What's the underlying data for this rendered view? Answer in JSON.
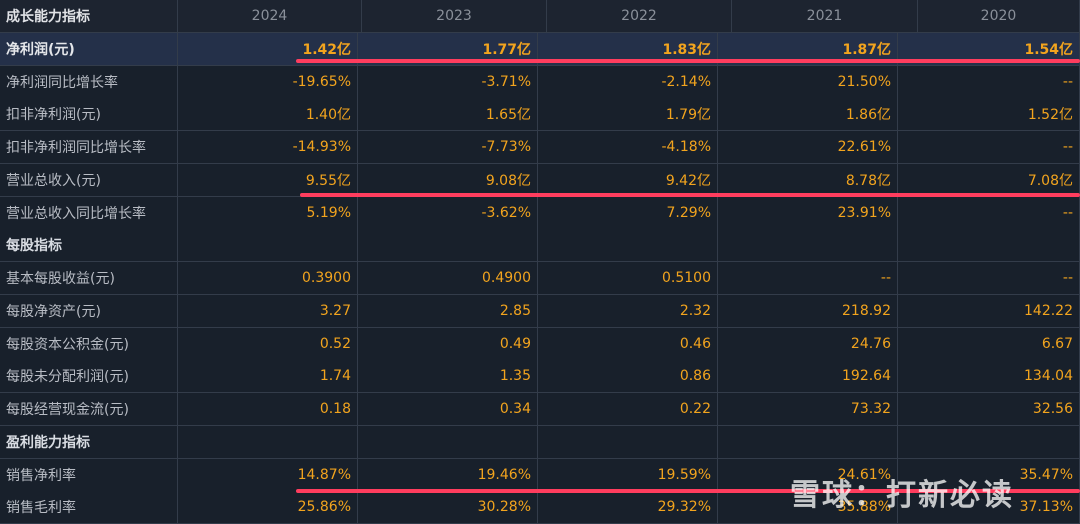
{
  "header": {
    "title": "成长能力指标",
    "years": [
      "2024",
      "2023",
      "2022",
      "2021",
      "2020"
    ]
  },
  "table": {
    "rows": [
      [
        "净利润(元)",
        "1.42亿",
        "1.77亿",
        "1.83亿",
        "1.87亿",
        "1.54亿"
      ],
      [
        "净利润同比增长率",
        "-19.65%",
        "-3.71%",
        "-2.14%",
        "21.50%",
        "--"
      ],
      [
        "扣非净利润(元)",
        "1.40亿",
        "1.65亿",
        "1.79亿",
        "1.86亿",
        "1.52亿"
      ],
      [
        "扣非净利润同比增长率",
        "-14.93%",
        "-7.73%",
        "-4.18%",
        "22.61%",
        "--"
      ],
      [
        "营业总收入(元)",
        "9.55亿",
        "9.08亿",
        "9.42亿",
        "8.78亿",
        "7.08亿"
      ],
      [
        "营业总收入同比增长率",
        "5.19%",
        "-3.62%",
        "7.29%",
        "23.91%",
        "--"
      ],
      [
        "每股指标"
      ],
      [
        "基本每股收益(元)",
        "0.3900",
        "0.4900",
        "0.5100",
        "--",
        "--"
      ],
      [
        "每股净资产(元)",
        "3.27",
        "2.85",
        "2.32",
        "218.92",
        "142.22"
      ],
      [
        "每股资本公积金(元)",
        "0.52",
        "0.49",
        "0.46",
        "24.76",
        "6.67"
      ],
      [
        "每股未分配利润(元)",
        "1.74",
        "1.35",
        "0.86",
        "192.64",
        "134.04"
      ],
      [
        "每股经营现金流(元)",
        "0.18",
        "0.34",
        "0.22",
        "73.32",
        "32.56"
      ],
      [
        "盈利能力指标"
      ],
      [
        "销售净利率",
        "14.87%",
        "19.46%",
        "19.59%",
        "24.61%",
        "35.47%"
      ],
      [
        "销售毛利率",
        "25.86%",
        "30.28%",
        "29.32%",
        "35.88%",
        "37.13%"
      ]
    ]
  },
  "watermark": "雪球：打新必读"
}
